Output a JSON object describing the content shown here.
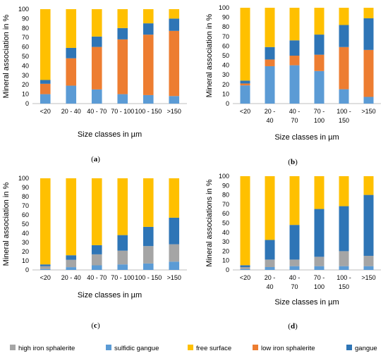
{
  "colors": {
    "high iron sphalerite": "#A5A5A5",
    "sulfidic gangue": "#5B9BD5",
    "free surface": "#FFC000",
    "low iron sphalerite": "#ED7D31",
    "gangue": "#2E75B6"
  },
  "legend": [
    "high iron sphalerite",
    "sulfidic gangue",
    "free surface",
    "low iron sphalerite",
    "gangue"
  ],
  "chart_data": [
    {
      "type": "bar",
      "stacked": true,
      "panel_label": "(a)",
      "categories": [
        "<20",
        "20 - 40",
        "40 - 70",
        "70 - 100",
        "100 - 150",
        ">150"
      ],
      "xlabel": "Size classes in µm",
      "ylabel": "Mineral association in %",
      "ylim": [
        0,
        100
      ],
      "yticks": [
        0,
        10,
        20,
        30,
        40,
        50,
        60,
        70,
        80,
        90,
        100
      ],
      "series": [
        {
          "name": "sulfidic gangue",
          "values": [
            10,
            19,
            15,
            10,
            9,
            8
          ]
        },
        {
          "name": "low iron sphalerite",
          "values": [
            11,
            29,
            45,
            58,
            64,
            69
          ]
        },
        {
          "name": "gangue",
          "values": [
            4,
            11,
            11,
            12,
            12,
            13
          ]
        },
        {
          "name": "free surface",
          "values": [
            75,
            41,
            29,
            20,
            15,
            10
          ]
        }
      ]
    },
    {
      "type": "bar",
      "stacked": true,
      "panel_label": "(b)",
      "categories": [
        "<20",
        "20 - 40",
        "40 - 70",
        "70 - 100",
        "100 - 150",
        ">150"
      ],
      "xlabel": "Size classes in µm",
      "ylabel": "Mineral association in %",
      "ylim": [
        0,
        100
      ],
      "yticks": [
        0,
        10,
        20,
        30,
        40,
        50,
        60,
        70,
        80,
        90,
        100
      ],
      "series": [
        {
          "name": "sulfidic gangue",
          "values": [
            19,
            39,
            40,
            34,
            15,
            7
          ]
        },
        {
          "name": "low iron sphalerite",
          "values": [
            2,
            7,
            10,
            17,
            44,
            49
          ]
        },
        {
          "name": "gangue",
          "values": [
            3,
            13,
            16,
            21,
            23,
            33
          ]
        },
        {
          "name": "free surface",
          "values": [
            76,
            41,
            34,
            28,
            18,
            11
          ]
        }
      ]
    },
    {
      "type": "bar",
      "stacked": true,
      "panel_label": "(c)",
      "categories": [
        "<20",
        "20 - 40",
        "40 - 70",
        "70 - 100",
        "100 - 150",
        ">150"
      ],
      "xlabel": "Size classes in µm",
      "ylabel": "Mineral association in %",
      "ylim": [
        0,
        100
      ],
      "yticks": [
        0,
        10,
        20,
        30,
        40,
        50,
        60,
        70,
        80,
        90,
        100
      ],
      "series": [
        {
          "name": "sulfidic gangue",
          "values": [
            1,
            3,
            5,
            6,
            7,
            9
          ]
        },
        {
          "name": "high iron sphalerite",
          "values": [
            3,
            8,
            12,
            15,
            19,
            19
          ]
        },
        {
          "name": "gangue",
          "values": [
            2,
            5,
            10,
            17,
            21,
            29
          ]
        },
        {
          "name": "free surface",
          "values": [
            94,
            84,
            73,
            62,
            53,
            43
          ]
        }
      ]
    },
    {
      "type": "bar",
      "stacked": true,
      "panel_label": "(d)",
      "categories": [
        "<20",
        "20 - 40",
        "40 - 70",
        "70 - 100",
        "100 - 150",
        ">150"
      ],
      "xlabel": "Size classes in µm",
      "ylabel": "Mineral associations in %",
      "ylim": [
        0,
        100
      ],
      "yticks": [
        0,
        10,
        20,
        30,
        40,
        50,
        60,
        70,
        80,
        90,
        100
      ],
      "series": [
        {
          "name": "sulfidic gangue",
          "values": [
            1,
            3,
            4,
            4,
            4,
            4
          ]
        },
        {
          "name": "high iron sphalerite",
          "values": [
            2,
            8,
            7,
            10,
            16,
            11
          ]
        },
        {
          "name": "gangue",
          "values": [
            2,
            21,
            37,
            51,
            48,
            65
          ]
        },
        {
          "name": "free surface",
          "values": [
            95,
            68,
            52,
            35,
            32,
            20
          ]
        }
      ]
    }
  ]
}
